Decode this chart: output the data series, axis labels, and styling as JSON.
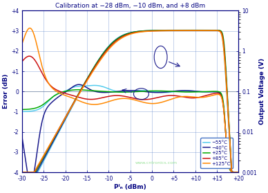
{
  "title": "Calibration at −28 dBm, −10 dBm, and +8 dBm",
  "xlabel": "Pᴵₙ (dBm)",
  "ylabel_left": "Error (dB)",
  "ylabel_right": "Output Voltage (V)",
  "x_min": -30,
  "x_max": 20,
  "y_left_min": -4,
  "y_left_max": 4,
  "y_right_min_log": 0.001,
  "y_right_max_log": 10,
  "colors": {
    "m55": "#55CCEE",
    "m40": "#1A1A8C",
    "p25": "#00AA00",
    "p85": "#CC1111",
    "p125": "#FF8800"
  },
  "legend_labels": [
    "−55°C",
    "−40°C",
    "+25°C",
    "+85°C",
    "+125°C"
  ],
  "x_ticks": [
    -30,
    -25,
    -20,
    -15,
    -10,
    -5,
    0,
    5,
    10,
    15,
    20
  ],
  "x_tick_labels": [
    "-30",
    "-25",
    "-20",
    "-15",
    "-10",
    "-5",
    "0",
    "+5",
    "+10",
    "+15",
    "+20"
  ],
  "y_left_ticks": [
    -4,
    -3,
    -2,
    -1,
    0,
    1,
    2,
    3,
    4
  ],
  "y_left_labels": [
    "-4",
    "-3",
    "-2",
    "-1",
    "0",
    "+1",
    "+2",
    "+3",
    "+4"
  ],
  "y_right_ticks": [
    0.001,
    0.01,
    0.1,
    1,
    10
  ],
  "y_right_labels": [
    "0.001",
    "0.01",
    "0.1",
    "1",
    "10"
  ],
  "bg_color": "#FFFFFF",
  "grid_color": "#4472C4",
  "watermark": "www.cntronics.com",
  "watermark_color": "#88DD88"
}
